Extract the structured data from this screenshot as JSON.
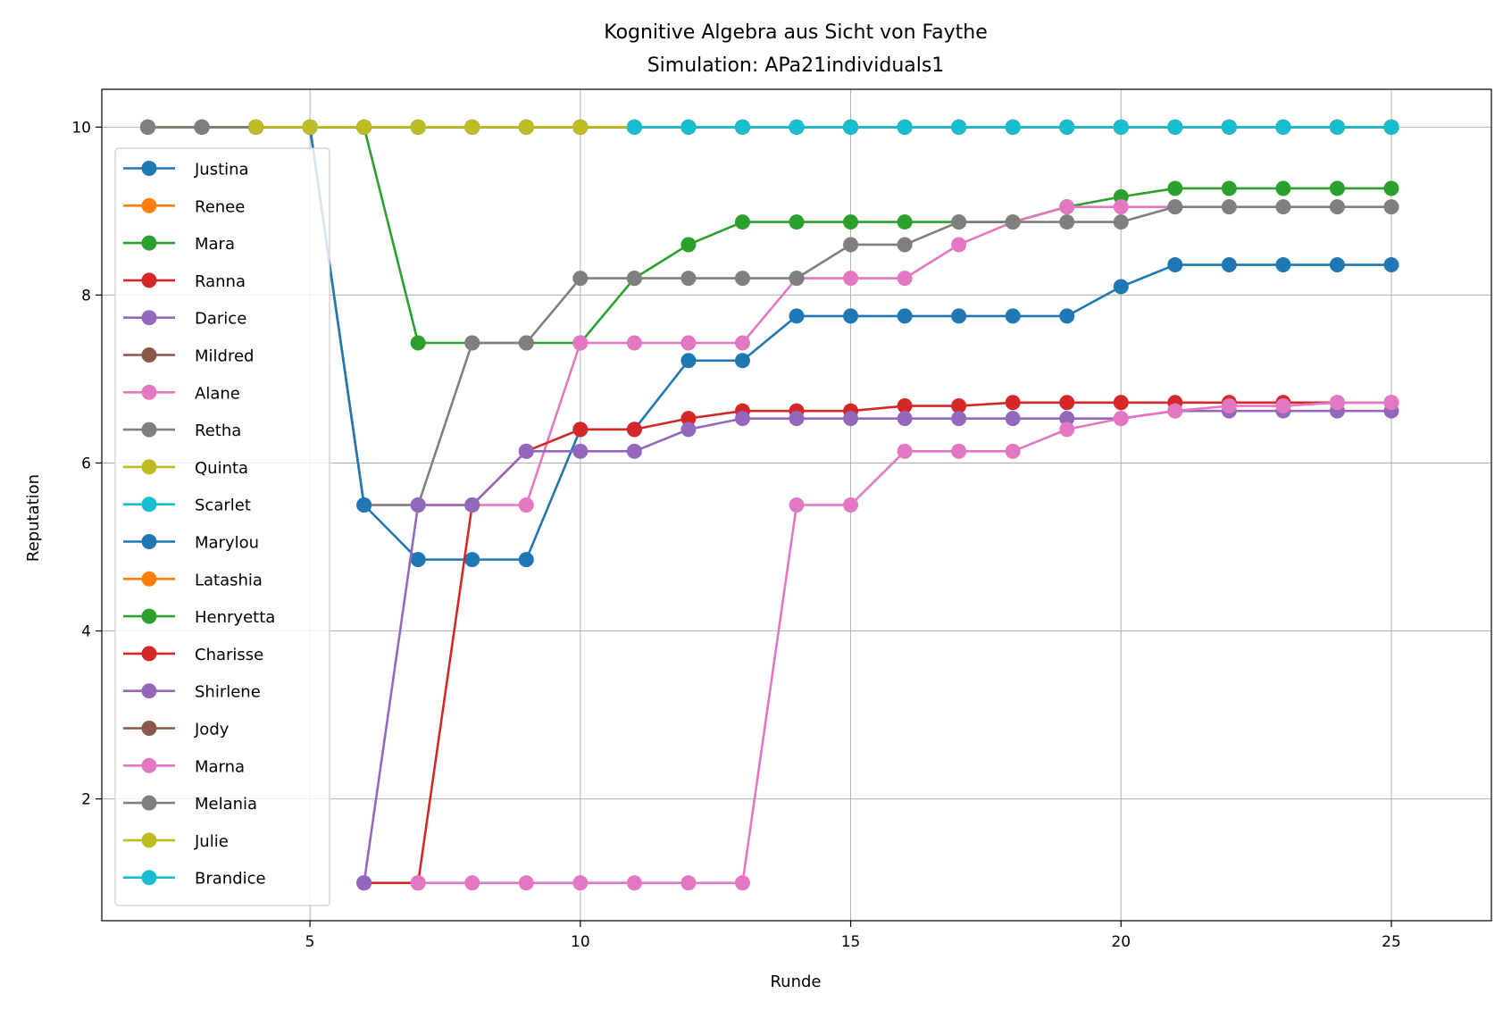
{
  "chart_data": {
    "type": "line",
    "title": "Kognitive Algebra aus Sicht von Faythe",
    "subtitle": "Simulation: APa21individuals1",
    "xlabel": "Runde",
    "ylabel": "Reputation",
    "xlim": [
      1.15,
      26.85
    ],
    "ylim": [
      0.55,
      10.45
    ],
    "xticks": [
      5,
      10,
      15,
      20,
      25
    ],
    "yticks": [
      2,
      4,
      6,
      8,
      10
    ],
    "grid": true,
    "legend_position": "left",
    "series": [
      {
        "name": "Justina",
        "color": "#1f77b4",
        "x": [
          2,
          3,
          4,
          5
        ],
        "y": [
          10,
          10,
          10,
          10
        ]
      },
      {
        "name": "Renee",
        "color": "#ff7f0e",
        "x": [
          2,
          3,
          4,
          5,
          6,
          7,
          8,
          9,
          10,
          11,
          12,
          13,
          14,
          15,
          16,
          17,
          18,
          19,
          20,
          21,
          22,
          23,
          24,
          25
        ],
        "y": [
          10,
          10,
          10,
          10,
          10,
          10,
          10,
          10,
          10,
          10,
          10,
          10,
          10,
          10,
          10,
          10,
          10,
          10,
          10,
          10,
          10,
          10,
          10,
          10
        ]
      },
      {
        "name": "Mara",
        "color": "#2ca02c",
        "x": [
          2,
          3,
          4,
          5,
          6,
          7,
          8,
          9,
          10,
          11,
          12,
          13,
          14,
          15,
          16,
          17,
          18,
          19,
          20,
          21,
          22,
          23,
          24,
          25
        ],
        "y": [
          10,
          10,
          10,
          10,
          10,
          7.43,
          7.43,
          7.43,
          7.43,
          8.2,
          8.6,
          8.87,
          8.87,
          8.87,
          8.87,
          8.87,
          8.87,
          9.05,
          9.17,
          9.27,
          9.27,
          9.27,
          9.27,
          9.27
        ]
      },
      {
        "name": "Ranna",
        "color": "#d62728",
        "x": [
          2,
          3,
          4,
          5,
          6,
          7,
          8,
          9,
          10,
          11,
          12,
          13,
          14,
          15,
          16,
          17,
          18,
          19,
          20,
          21,
          22,
          23,
          24,
          25
        ],
        "y": [
          10,
          10,
          10,
          10,
          10,
          10,
          10,
          10,
          10,
          10,
          10,
          10,
          10,
          10,
          10,
          10,
          10,
          10,
          10,
          10,
          10,
          10,
          10,
          10
        ]
      },
      {
        "name": "Darice",
        "color": "#9467bd",
        "x": [
          2,
          3,
          4,
          5,
          6,
          7,
          8,
          9,
          10,
          11,
          12,
          13,
          14,
          15,
          16,
          17,
          18,
          19,
          20,
          21,
          22,
          23,
          24,
          25
        ],
        "y": [
          10,
          10,
          10,
          10,
          10,
          10,
          10,
          10,
          10,
          10,
          10,
          10,
          10,
          10,
          10,
          10,
          10,
          10,
          10,
          10,
          10,
          10,
          10,
          10
        ]
      },
      {
        "name": "Mildred",
        "color": "#8c564b",
        "x": [
          2,
          3,
          4,
          5,
          6,
          7,
          8,
          9,
          10,
          11,
          12,
          13,
          14,
          15,
          16,
          17,
          18,
          19,
          20,
          21,
          22,
          23,
          24,
          25
        ],
        "y": [
          10,
          10,
          10,
          10,
          10,
          10,
          10,
          10,
          10,
          10,
          10,
          10,
          10,
          10,
          10,
          10,
          10,
          10,
          10,
          10,
          10,
          10,
          10,
          10
        ]
      },
      {
        "name": "Alane",
        "color": "#e377c2",
        "x": [
          5,
          6,
          7,
          8,
          9,
          10,
          11,
          12,
          13,
          14,
          15,
          16,
          17,
          18,
          19,
          20,
          21
        ],
        "y": [
          10,
          5.5,
          5.5,
          5.5,
          5.5,
          7.43,
          7.43,
          7.43,
          7.43,
          8.2,
          8.2,
          8.2,
          8.6,
          8.87,
          9.05,
          9.05,
          9.05
        ]
      },
      {
        "name": "Retha",
        "color": "#7f7f7f",
        "x": [
          5,
          6,
          7,
          8,
          9,
          10,
          11,
          12,
          13,
          14,
          15,
          16,
          17,
          18,
          19,
          20,
          21,
          22,
          23,
          24,
          25
        ],
        "y": [
          10,
          5.5,
          5.5,
          7.43,
          7.43,
          8.2,
          8.2,
          8.2,
          8.2,
          8.2,
          8.6,
          8.6,
          8.87,
          8.87,
          8.87,
          8.87,
          9.05,
          9.05,
          9.05,
          9.05,
          9.05
        ]
      },
      {
        "name": "Quinta",
        "color": "#bcbd22",
        "x": [
          2,
          3,
          4,
          5,
          6,
          7,
          8,
          9,
          10,
          11,
          12,
          13,
          14,
          15,
          16,
          17,
          18,
          19,
          20,
          21,
          22,
          23,
          24,
          25
        ],
        "y": [
          10,
          10,
          10,
          10,
          10,
          10,
          10,
          10,
          10,
          10,
          10,
          10,
          10,
          10,
          10,
          10,
          10,
          10,
          10,
          10,
          10,
          10,
          10,
          10
        ]
      },
      {
        "name": "Scarlet",
        "color": "#17becf",
        "x": [
          2,
          3,
          4,
          5,
          6,
          7,
          8,
          9,
          10,
          11,
          12,
          13,
          14,
          15,
          16,
          17,
          18,
          19,
          20,
          21,
          22,
          23,
          24,
          25
        ],
        "y": [
          10,
          10,
          10,
          10,
          10,
          10,
          10,
          10,
          10,
          10,
          10,
          10,
          10,
          10,
          10,
          10,
          10,
          10,
          10,
          10,
          10,
          10,
          10,
          10
        ]
      },
      {
        "name": "Marylou",
        "color": "#1f77b4",
        "x": [
          5,
          6,
          7,
          8,
          9,
          10,
          11,
          12,
          13,
          14,
          15,
          16,
          17,
          18,
          19,
          20,
          21,
          22,
          23,
          24,
          25
        ],
        "y": [
          10,
          5.5,
          4.85,
          4.85,
          4.85,
          6.4,
          6.4,
          7.22,
          7.22,
          7.75,
          7.75,
          7.75,
          7.75,
          7.75,
          7.75,
          8.1,
          8.36,
          8.36,
          8.36,
          8.36,
          8.36
        ]
      },
      {
        "name": "Latashia",
        "color": "#ff7f0e",
        "x": [
          2,
          3,
          4,
          5,
          6,
          7,
          8,
          9,
          10,
          11,
          12,
          13,
          14,
          15,
          16,
          17,
          18,
          19,
          20,
          21,
          22,
          23,
          24,
          25
        ],
        "y": [
          10,
          10,
          10,
          10,
          10,
          10,
          10,
          10,
          10,
          10,
          10,
          10,
          10,
          10,
          10,
          10,
          10,
          10,
          10,
          10,
          10,
          10,
          10,
          10
        ]
      },
      {
        "name": "Henryetta",
        "color": "#2ca02c",
        "x": [
          2,
          3,
          4,
          5,
          6,
          7,
          8,
          9,
          10,
          11,
          12,
          13,
          14,
          15,
          16,
          17,
          18,
          19,
          20,
          21,
          22,
          23,
          24,
          25
        ],
        "y": [
          10,
          10,
          10,
          10,
          10,
          10,
          10,
          10,
          10,
          10,
          10,
          10,
          10,
          10,
          10,
          10,
          10,
          10,
          10,
          10,
          10,
          10,
          10,
          10
        ]
      },
      {
        "name": "Charisse",
        "color": "#d62728",
        "x": [
          6,
          7,
          8,
          9,
          10,
          11,
          12,
          13,
          14,
          15,
          16,
          17,
          18,
          19,
          20,
          21,
          22,
          23,
          24,
          25
        ],
        "y": [
          1,
          1,
          5.5,
          6.14,
          6.4,
          6.4,
          6.53,
          6.62,
          6.62,
          6.62,
          6.68,
          6.68,
          6.72,
          6.72,
          6.72,
          6.72,
          6.72,
          6.72,
          6.72,
          6.72
        ]
      },
      {
        "name": "Shirlene",
        "color": "#9467bd",
        "x": [
          6,
          7,
          8,
          9,
          10,
          11,
          12,
          13,
          14,
          15,
          16,
          17,
          18,
          19,
          20,
          21,
          22,
          23,
          24,
          25
        ],
        "y": [
          1,
          5.5,
          5.5,
          6.14,
          6.14,
          6.14,
          6.4,
          6.53,
          6.53,
          6.53,
          6.53,
          6.53,
          6.53,
          6.53,
          6.53,
          6.62,
          6.62,
          6.62,
          6.62,
          6.62
        ]
      },
      {
        "name": "Jody",
        "color": "#8c564b",
        "x": [
          2,
          3,
          4,
          5,
          6,
          7,
          8,
          9,
          10,
          11,
          12,
          13,
          14,
          15,
          16,
          17,
          18,
          19,
          20,
          21,
          22,
          23,
          24,
          25
        ],
        "y": [
          10,
          10,
          10,
          10,
          10,
          10,
          10,
          10,
          10,
          10,
          10,
          10,
          10,
          10,
          10,
          10,
          10,
          10,
          10,
          10,
          10,
          10,
          10,
          10
        ]
      },
      {
        "name": "Marna",
        "color": "#e377c2",
        "x": [
          7,
          8,
          9,
          10,
          11,
          12,
          13,
          14,
          15,
          16,
          17,
          18,
          19,
          20,
          21,
          22,
          23,
          24,
          25
        ],
        "y": [
          1,
          1,
          1,
          1,
          1,
          1,
          1,
          5.5,
          5.5,
          6.14,
          6.14,
          6.14,
          6.4,
          6.53,
          6.62,
          6.68,
          6.68,
          6.72,
          6.72
        ]
      },
      {
        "name": "Melania",
        "color": "#7f7f7f",
        "x": [
          2,
          3,
          4,
          5,
          6,
          7,
          8,
          9,
          10,
          11,
          12,
          13,
          14,
          15,
          16,
          17,
          18,
          19,
          20,
          21,
          22,
          23,
          24,
          25
        ],
        "y": [
          10,
          10,
          10,
          10,
          10,
          10,
          10,
          10,
          10,
          10,
          10,
          10,
          10,
          10,
          10,
          10,
          10,
          10,
          10,
          10,
          10,
          10,
          10,
          10
        ]
      },
      {
        "name": "Julie",
        "color": "#bcbd22",
        "x": [
          4,
          5,
          6,
          7,
          8,
          9,
          10,
          11
        ],
        "y": [
          10,
          10,
          10,
          10,
          10,
          10,
          10,
          10
        ]
      },
      {
        "name": "Brandice",
        "color": "#17becf",
        "x": [
          11,
          12,
          13,
          14,
          15,
          16,
          17,
          18,
          19,
          20,
          21,
          22,
          23,
          24,
          25
        ],
        "y": [
          10,
          10,
          10,
          10,
          10,
          10,
          10,
          10,
          10,
          10,
          10,
          10,
          10,
          10,
          10
        ]
      }
    ]
  }
}
